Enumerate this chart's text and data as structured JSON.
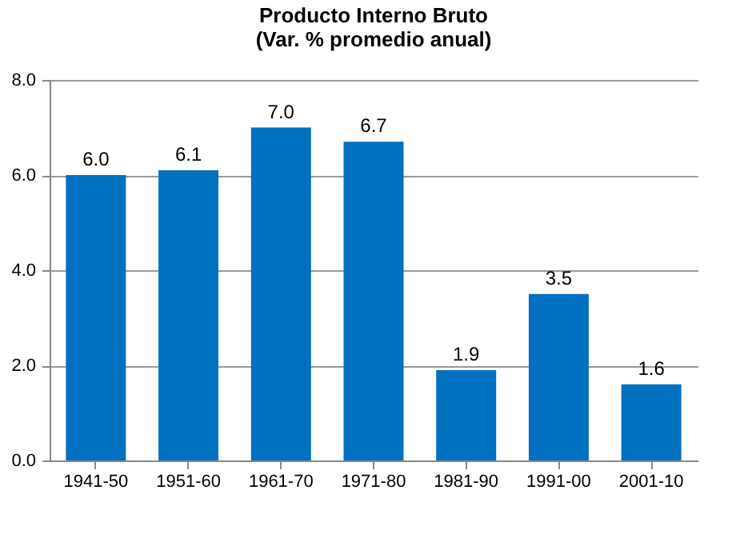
{
  "chart_data": {
    "type": "bar",
    "title": "Producto Interno Bruto",
    "subtitle": "(Var. % promedio anual)",
    "categories": [
      "1941-50",
      "1951-60",
      "1961-70",
      "1971-80",
      "1981-90",
      "1991-00",
      "2001-10"
    ],
    "values": [
      6.0,
      6.1,
      7.0,
      6.7,
      1.9,
      3.5,
      1.6
    ],
    "value_labels": [
      "6.0",
      "6.1",
      "7.0",
      "6.7",
      "1.9",
      "3.5",
      "1.6"
    ],
    "color": "#0070c0",
    "ylim": [
      0,
      8
    ],
    "yticks": [
      {
        "value": 0,
        "label": "0.0"
      },
      {
        "value": 2,
        "label": "2.0"
      },
      {
        "value": 4,
        "label": "4.0"
      },
      {
        "value": 6,
        "label": "6.0"
      },
      {
        "value": 8,
        "label": "8.0"
      }
    ],
    "grid": true
  }
}
